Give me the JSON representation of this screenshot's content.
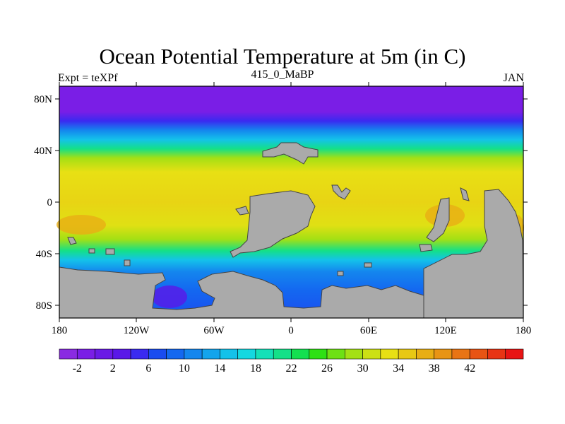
{
  "title": "Ocean Potential Temperature at 5m (in C)",
  "subtitle_left": "Expt = teXPf",
  "subtitle_center": "415_0_MaBP",
  "subtitle_right": "JAN",
  "y_ticks": [
    "80N",
    "40N",
    "0",
    "40S",
    "80S"
  ],
  "x_ticks": [
    "180",
    "120W",
    "60W",
    "0",
    "60E",
    "120E",
    "180"
  ],
  "colorbar": {
    "labels": [
      "-2",
      "2",
      "6",
      "10",
      "14",
      "18",
      "22",
      "26",
      "30",
      "34",
      "38",
      "42"
    ],
    "colors": [
      "#8a2be2",
      "#7a1ee6",
      "#6a1ae6",
      "#5a18e8",
      "#3a2af0",
      "#1a4cf0",
      "#1468f0",
      "#1486ee",
      "#14a4ec",
      "#14c2ea",
      "#14d8e0",
      "#14e0b8",
      "#14e088",
      "#14e050",
      "#2ee014",
      "#6ee014",
      "#a4e014",
      "#cce014",
      "#e8e014",
      "#e8c814",
      "#e8ae14",
      "#e89414",
      "#e87414",
      "#e85414",
      "#e83414",
      "#e81414"
    ]
  },
  "colors": {
    "land": "#aaaaaa",
    "coast": "#444444",
    "axis": "#000000"
  }
}
